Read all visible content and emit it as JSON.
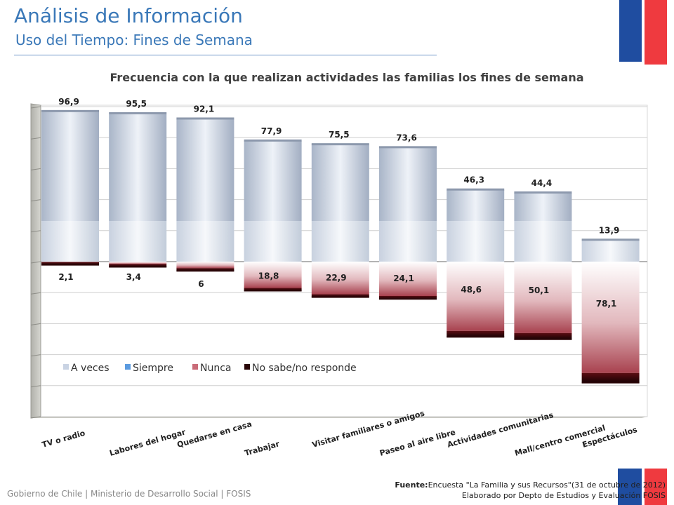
{
  "header": {
    "title": "Análisis de Información",
    "subtitle": "Uso del Tiempo: Fines de Semana"
  },
  "chart_data": {
    "type": "bar",
    "title": "Frecuencia con la que realizan actividades las familias los fines de semana",
    "categories": [
      "TV o radio",
      "Labores del hogar",
      "Quedarse en casa",
      "Trabajar",
      "Visitar familiares o amigos",
      "Paseo al aire libre",
      "Actividades comunitarias",
      "Mall/centro comercial",
      "Espectáculos"
    ],
    "positive_totals": [
      96.9,
      95.5,
      92.1,
      77.9,
      75.5,
      73.6,
      46.3,
      44.4,
      13.9
    ],
    "negative_totals": [
      2.1,
      3.4,
      6,
      18.8,
      22.9,
      24.1,
      48.6,
      50.1,
      78.1
    ],
    "positive_labels": [
      "96,9",
      "95,5",
      "92,1",
      "77,9",
      "75,5",
      "73,6",
      "46,3",
      "44,4",
      "13,9"
    ],
    "negative_labels": [
      "2,1",
      "3,4",
      "6",
      "18,8",
      "22,9",
      "24,1",
      "48,6",
      "50,1",
      "78,1"
    ],
    "series": [
      {
        "name": "A veces",
        "color": "#c9d3e3"
      },
      {
        "name": "Siempre",
        "color": "#5b9be0"
      },
      {
        "name": "Nunca",
        "color": "#c96b78"
      },
      {
        "name": "No sabe/no responde",
        "color": "#2a0608"
      }
    ],
    "legend_position": "bottom-left",
    "ylim": [
      -100,
      100
    ],
    "grid": true
  },
  "footer": {
    "org": "Gobierno de Chile | Ministerio de Desarrollo Social | FOSIS",
    "source_label": "Fuente:",
    "source_text": "Encuesta \"La Familia y sus Recursos\"(31 de octubre de 2012)",
    "elaborated": "Elaborado por Depto de Estudios y Evaluación FOSIS"
  }
}
